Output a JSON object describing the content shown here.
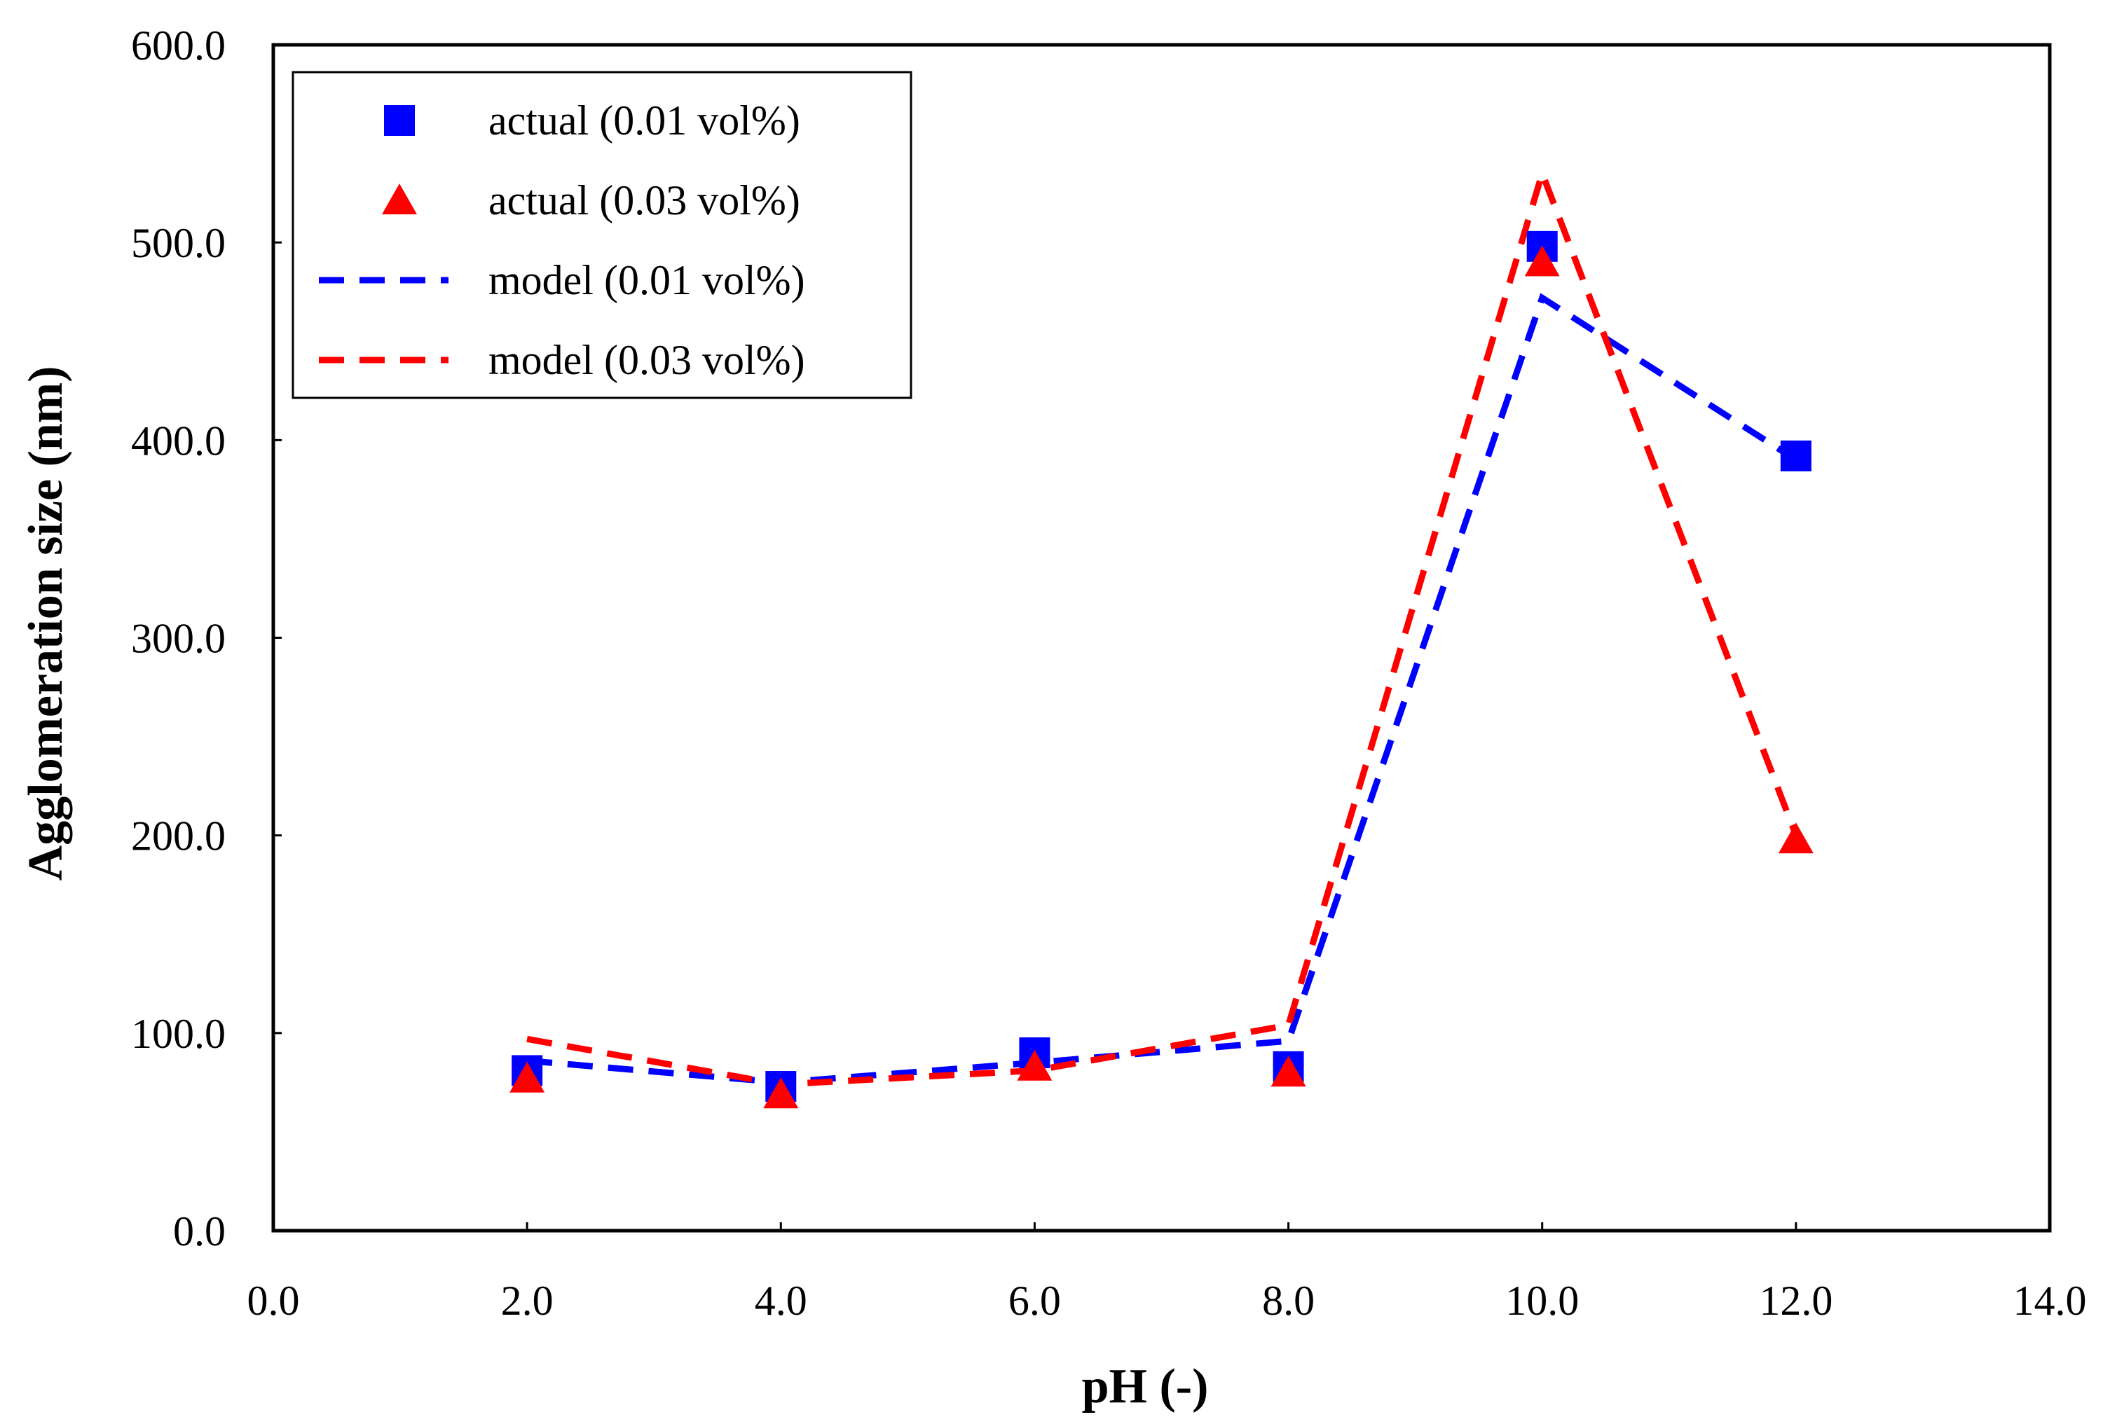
{
  "chart_data": {
    "type": "line",
    "title": "",
    "xlabel": "pH (-)",
    "ylabel": "Agglomeration size (nm)",
    "xlim": [
      0,
      14
    ],
    "ylim": [
      0,
      600
    ],
    "x_ticks": [
      0,
      2,
      4,
      6,
      8,
      10,
      12,
      14
    ],
    "y_ticks": [
      0,
      100,
      200,
      300,
      400,
      500,
      600
    ],
    "x_tick_labels": [
      "0.0",
      "2.0",
      "4.0",
      "6.0",
      "8.0",
      "10.0",
      "12.0",
      "14.0"
    ],
    "y_tick_labels": [
      "0.0",
      "100.0",
      "200.0",
      "300.0",
      "400.0",
      "500.0",
      "600.0"
    ],
    "grid": false,
    "legend_position": "top-left",
    "series": [
      {
        "name": "actual (0.01 vol%)",
        "style": "marker",
        "marker": "square",
        "color": "#0000ff",
        "x": [
          2,
          4,
          6,
          8,
          10,
          12
        ],
        "y": [
          81,
          73,
          90,
          83,
          498,
          392
        ]
      },
      {
        "name": "actual (0.03 vol%)",
        "style": "marker",
        "marker": "triangle",
        "color": "#ff0000",
        "x": [
          2,
          4,
          6,
          8,
          10,
          12
        ],
        "y": [
          77,
          69,
          83,
          80,
          490,
          198
        ]
      },
      {
        "name": "model (0.01 vol%)",
        "style": "dashed",
        "color": "#0000ff",
        "x": [
          2,
          4,
          6,
          8,
          10,
          12
        ],
        "y": [
          86,
          75,
          85,
          96,
          472,
          390
        ]
      },
      {
        "name": "model (0.03 vol%)",
        "style": "dashed",
        "color": "#ff0000",
        "x": [
          2,
          4,
          6,
          8,
          10,
          12
        ],
        "y": [
          97,
          74,
          81,
          104,
          535,
          200
        ]
      }
    ]
  }
}
